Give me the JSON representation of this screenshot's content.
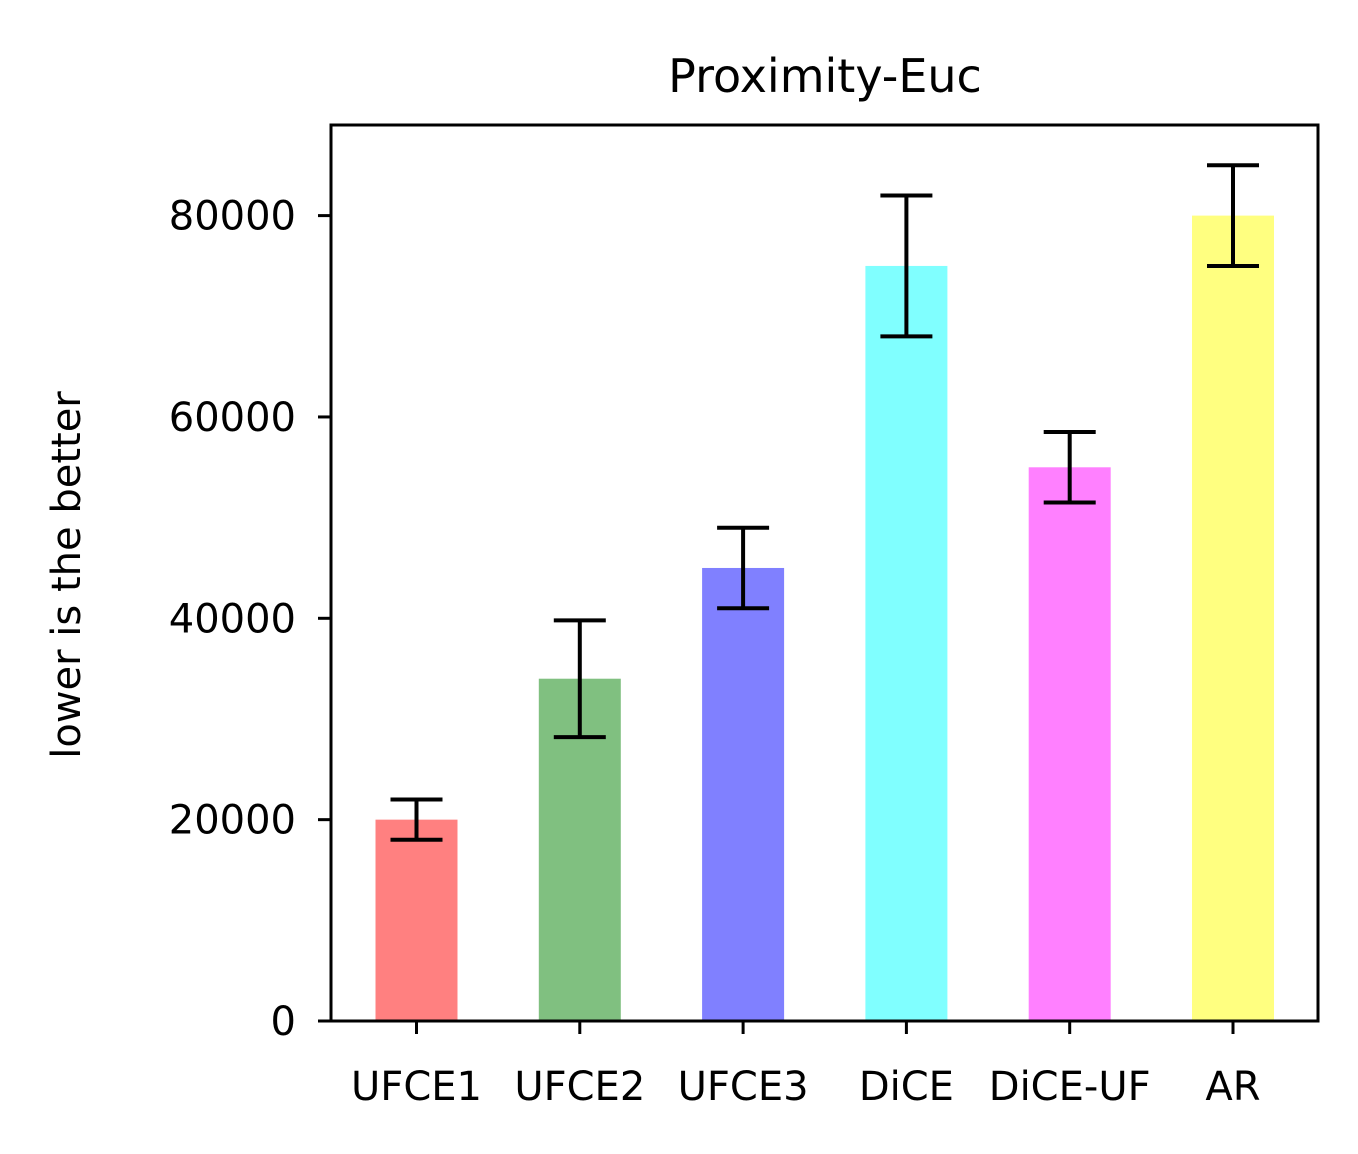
{
  "chart_data": {
    "type": "bar",
    "title": "Proximity-Euc",
    "xlabel": "",
    "ylabel": "lower is the better",
    "categories": [
      "UFCE1",
      "UFCE2",
      "UFCE3",
      "DiCE",
      "DiCE-UF",
      "AR"
    ],
    "values": [
      20000,
      34000,
      45000,
      75000,
      55000,
      80000
    ],
    "error_low": [
      18000,
      28200,
      41000,
      68000,
      51500,
      75000
    ],
    "error_high": [
      22000,
      39800,
      49000,
      82000,
      58500,
      85000
    ],
    "colors": [
      "#ff8080",
      "#80c080",
      "#8080ff",
      "#80ffff",
      "#ff80ff",
      "#ffff80"
    ],
    "ylim": [
      0,
      89000
    ],
    "yticks": [
      "0",
      "20000",
      "40000",
      "60000",
      "80000"
    ],
    "grid": false,
    "legend": "none"
  }
}
